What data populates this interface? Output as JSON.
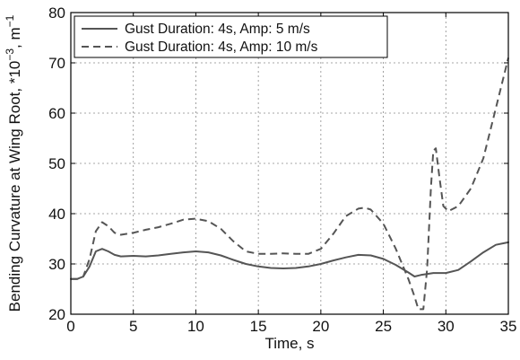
{
  "chart_data": {
    "type": "line",
    "xlabel": "Time, s",
    "ylabel": "Bending Curvature at Wing Root, *10",
    "ylabel_exp": "−3",
    "ylabel_suffix": ", m",
    "ylabel_unit_exp": "−1",
    "xlim": [
      0,
      35
    ],
    "ylim": [
      20,
      80
    ],
    "xticks": [
      0,
      5,
      10,
      15,
      20,
      25,
      30,
      35
    ],
    "yticks": [
      20,
      30,
      40,
      50,
      60,
      70,
      80
    ],
    "grid": true,
    "legend_position": "top-left",
    "series": [
      {
        "name": "Gust Duration: 4s, Amp: 5 m/s",
        "style": "solid",
        "color": "#555555",
        "x": [
          0,
          0.5,
          1.0,
          1.5,
          2.0,
          2.5,
          3.0,
          3.5,
          4.0,
          5.0,
          6.0,
          7.0,
          8.0,
          9.0,
          10.0,
          11.0,
          12.0,
          13.0,
          14.0,
          15.0,
          16.0,
          17.0,
          18.0,
          19.0,
          20.0,
          21.0,
          22.0,
          23.0,
          24.0,
          25.0,
          26.0,
          27.0,
          27.5,
          28.0,
          29.0,
          30.0,
          31.0,
          32.0,
          33.0,
          34.0,
          35.0
        ],
        "y": [
          27,
          27,
          27.5,
          29.5,
          32.5,
          33.0,
          32.5,
          31.8,
          31.5,
          31.6,
          31.5,
          31.7,
          32.0,
          32.3,
          32.5,
          32.3,
          31.7,
          30.8,
          30.0,
          29.5,
          29.2,
          29.1,
          29.2,
          29.5,
          30.0,
          30.7,
          31.3,
          31.8,
          31.7,
          31.0,
          29.8,
          28.3,
          27.5,
          27.8,
          28.2,
          28.2,
          28.8,
          30.5,
          32.3,
          33.8,
          34.3
        ]
      },
      {
        "name": "Gust Duration: 4s, Amp: 10 m/s",
        "style": "dashed",
        "color": "#555555",
        "x": [
          0,
          0.5,
          1.0,
          1.5,
          2.0,
          2.5,
          3.0,
          3.5,
          4.0,
          5.0,
          6.0,
          7.0,
          8.0,
          9.0,
          10.0,
          11.0,
          12.0,
          13.0,
          14.0,
          15.0,
          16.0,
          17.0,
          18.0,
          19.0,
          20.0,
          21.0,
          22.0,
          23.0,
          23.5,
          24.0,
          25.0,
          26.0,
          27.0,
          27.5,
          27.8,
          28.2,
          28.5,
          28.8,
          29.0,
          29.2,
          29.5,
          29.8,
          30.2,
          31.0,
          32.0,
          33.0,
          34.0,
          35.0
        ],
        "y": [
          27,
          27,
          27.5,
          31.0,
          36.5,
          38.3,
          37.5,
          36.2,
          35.8,
          36.2,
          36.8,
          37.3,
          38.0,
          38.8,
          39.0,
          38.5,
          37.0,
          34.5,
          32.5,
          32.0,
          32.0,
          32.1,
          32.0,
          32.0,
          33.0,
          36.0,
          39.5,
          41.0,
          41.2,
          40.8,
          38.0,
          33.0,
          27.0,
          23.5,
          21.0,
          21.0,
          29.0,
          45.0,
          52.5,
          53.0,
          47.0,
          41.5,
          40.5,
          41.5,
          45.0,
          51.0,
          61.0,
          71.0
        ]
      }
    ]
  }
}
